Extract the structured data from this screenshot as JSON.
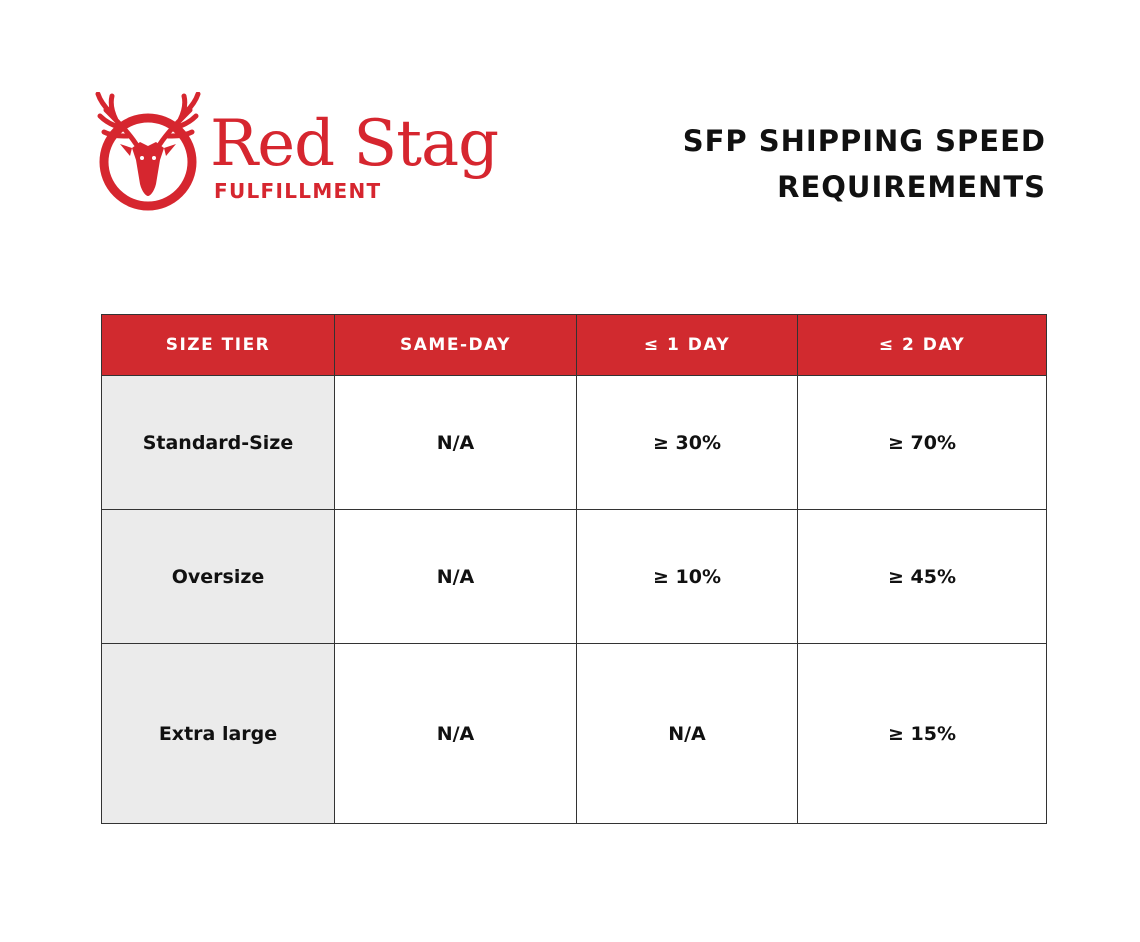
{
  "logo": {
    "name": "Red Stag",
    "subtitle": "FULFILLMENT",
    "icon": "stag-head-icon",
    "color": "#d6262f"
  },
  "heading": {
    "line1": "SFP SHIPPING SPEED",
    "line2": "REQUIREMENTS"
  },
  "table": {
    "header_color": "#d12a2f",
    "first_column_color": "#ebebeb",
    "columns": [
      "SIZE TIER",
      "SAME-DAY",
      "≤ 1 DAY",
      "≤ 2 DAY"
    ],
    "rows": [
      [
        "Standard-Size",
        "N/A",
        "≥ 30%",
        "≥ 70%"
      ],
      [
        "Oversize",
        "N/A",
        "≥ 10%",
        "≥ 45%"
      ],
      [
        "Extra large",
        "N/A",
        "N/A",
        "≥ 15%"
      ]
    ]
  }
}
